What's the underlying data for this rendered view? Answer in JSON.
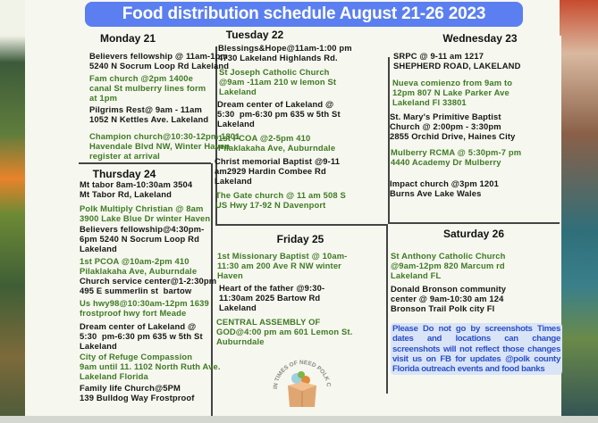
{
  "title": "Food distribution schedule August 21-26 2023",
  "days": {
    "monday": {
      "label": "Monday 21",
      "entries": [
        {
          "text": "Believers fellowship @ 11am-1pm\n5240 N Socrum Loop Rd Lakeland",
          "color": "black"
        },
        {
          "text": "Fam church @2pm 1400e\ncanal St mulberry lines form\nat 1pm",
          "color": "green"
        },
        {
          "text": "Pilgrims Rest@ 9am - 11am\n1052 N Kettles Ave. Lakeland",
          "color": "black"
        },
        {
          "text": "Champion church@10:30-12pm 1801\nHavendale Blvd NW, Winter Haven\nregister at arrival",
          "color": "green"
        }
      ]
    },
    "tuesday": {
      "label": "Tuesday 22",
      "entries": [
        {
          "text": "Blessings&Hope@11am-1:00 pm\n4730 Lakeland Highlands Rd.",
          "color": "black"
        },
        {
          "text": "St Joseph Catholic Church\n@9am -11am 210 w lemon St\nLakeland",
          "color": "green"
        },
        {
          "text": "Dream center of Lakeland @\n5:30  pm-6:30 pm 635 w 5th St\nLakeland",
          "color": "black"
        },
        {
          "text": "1st PCOA @2-5pm 410\nPilaklakaha Ave, Auburndale",
          "color": "green"
        },
        {
          "text": "Christ memorial Baptist @9-11\nam2929 Hardin Combee Rd\nLakeland",
          "color": "black"
        },
        {
          "text": "The Gate church @ 11 am 508 S\nUS Hwy 17-92 N Davenport",
          "color": "green"
        }
      ]
    },
    "wednesday": {
      "label": "Wednesday 23",
      "entries": [
        {
          "text": "SRPC @ 9-11 am 1217\nSHEPHERD ROAD, LAKELAND",
          "color": "black"
        },
        {
          "text": "Nueva comienzo from 9am to\n12pm 807 N Lake Parker Ave\nLakeland Fl 33801",
          "color": "green"
        },
        {
          "text": "St. Mary's Primitive Baptist\nChurch @ 2:00pm - 3:30pm\n2855 Orchid Drive, Haines City",
          "color": "black"
        },
        {
          "text": "Mulberry RCMA @ 5:30pm-7 pm\n4440 Academy Dr Mulberry",
          "color": "green"
        },
        {
          "text": "Impact church @3pm 1201\nBurns Ave Lake Wales",
          "color": "black"
        }
      ]
    },
    "thursday": {
      "label": "Thursday 24",
      "entries": [
        {
          "text": "Mt tabor 8am-10:30am 3504\nMt Tabor Rd, Lakeland",
          "color": "black"
        },
        {
          "text": "Polk Multiply Christian @ 8am\n3900 Lake Blue Dr winter Haven",
          "color": "green"
        },
        {
          "text": "Believers fellowship@4:30pm-\n6pm 5240 N Socrum Loop Rd\nLakeland",
          "color": "black"
        },
        {
          "text": "1st PCOA @10am-2pm 410\nPilaklakaha Ave, Auburndale",
          "color": "green"
        },
        {
          "text": "Church service center@1-2:30pm\n495 E summerlin st  bartow",
          "color": "black"
        },
        {
          "text": "Us hwy98@10:30am-12pm 1639\nfrostproof hwy fort Meade",
          "color": "green"
        },
        {
          "text": "Dream center of Lakeland @\n5:30  pm-6:30 pm 635 w 5th St\nLakeland",
          "color": "black"
        },
        {
          "text": "City of Refuge Compassion\n9am until 11. 1102 North Ruth Ave.\nLakeland Florida",
          "color": "green"
        },
        {
          "text": "Family life Church@5PM\n139 Bulldog Way Frostproof",
          "color": "black"
        }
      ]
    },
    "friday": {
      "label": "Friday 25",
      "entries": [
        {
          "text": "1st Missionary Baptist @ 10am-\n11:30 am 200 Ave R NW winter\nHaven",
          "color": "green"
        },
        {
          "text": "Heart of the father @9:30-\n11:30am 2025 Bartow Rd\nLakeland",
          "color": "black"
        },
        {
          "text": "CENTRAL ASSEMBLY OF\nGOD@4:00 pm am 601 Lemon St.\nAuburndale",
          "color": "green"
        }
      ]
    },
    "saturday": {
      "label": "Saturday 26",
      "entries": [
        {
          "text": "St Anthony Catholic Church\n@9am-12pm 820 Marcum rd\nLakeland FL",
          "color": "green"
        },
        {
          "text": "Donald Bronson community\ncenter @ 9am-10:30 am 124\nBronson Trail Polk city Fl",
          "color": "black"
        }
      ]
    }
  },
  "notice": "Please Do not go by screenshots Times dates and locations can change screenshots will not reflect those changes visit us on FB for updates @polk county Florida outreach events and food banks",
  "logo": {
    "text": "IN TIMES OF NEED POLK COUNTY FL",
    "icon": "food-box-icon"
  },
  "colors": {
    "banner": "#5b7ff0",
    "green_text": "#3f7a25",
    "black_text": "#161616",
    "notice_bg": "#d9e4f7",
    "notice_text": "#2a4fc8"
  }
}
